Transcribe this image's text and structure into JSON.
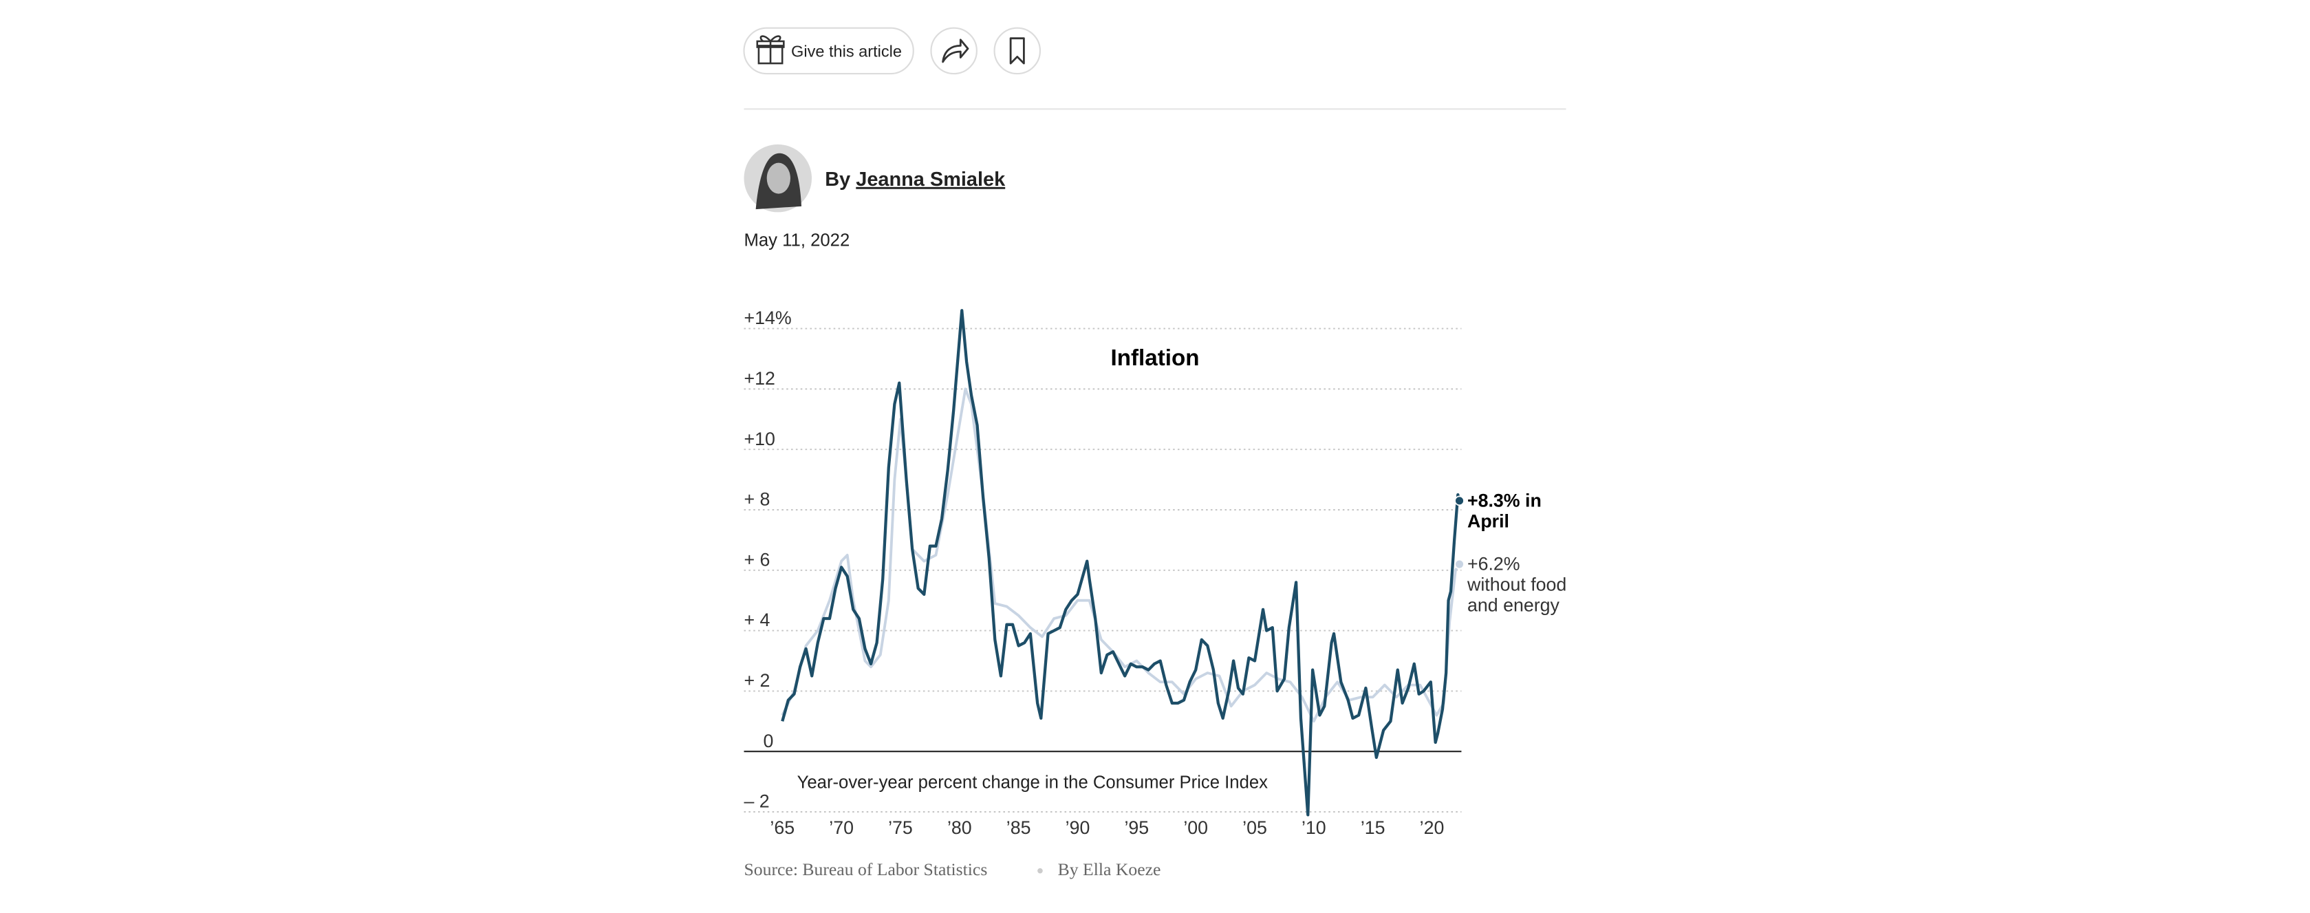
{
  "article": {
    "gift_button": "Give this article",
    "byline_prefix": "By",
    "author": "Jeanna Smialek",
    "date": "May 11, 2022"
  },
  "chart_data": {
    "type": "line",
    "title": "Inflation",
    "subtitle": "Year-over-year percent change in the Consumer Price Index",
    "source": "Source: Bureau of Labor Statistics",
    "credit": "By Ella Koeze",
    "xlim": [
      1962,
      2022.5
    ],
    "ylim": [
      -2,
      14
    ],
    "xticks": [
      {
        "value": 1965,
        "label": "’65"
      },
      {
        "value": 1970,
        "label": "’70"
      },
      {
        "value": 1975,
        "label": "’75"
      },
      {
        "value": 1980,
        "label": "’80"
      },
      {
        "value": 1985,
        "label": "’85"
      },
      {
        "value": 1990,
        "label": "’90"
      },
      {
        "value": 1995,
        "label": "’95"
      },
      {
        "value": 2000,
        "label": "’00"
      },
      {
        "value": 2005,
        "label": "’05"
      },
      {
        "value": 2010,
        "label": "’10"
      },
      {
        "value": 2015,
        "label": "’15"
      },
      {
        "value": 2020,
        "label": "’20"
      }
    ],
    "yticks": [
      {
        "value": 14,
        "label": "+14%"
      },
      {
        "value": 12,
        "label": "+12"
      },
      {
        "value": 10,
        "label": "+10"
      },
      {
        "value": 8,
        "label": "+ 8"
      },
      {
        "value": 6,
        "label": "+ 6"
      },
      {
        "value": 4,
        "label": "+ 4"
      },
      {
        "value": 2,
        "label": "+ 2"
      },
      0,
      {
        "value": -2,
        "label": "– 2"
      }
    ],
    "grid": true,
    "series": [
      {
        "name": "without food and energy",
        "color": "#c8d4e3",
        "label_lines": [
          "+6.2%",
          "without food",
          "and energy"
        ],
        "x": [
          1965,
          1966,
          1967,
          1968,
          1969,
          1970,
          1970.5,
          1971,
          1972,
          1972.5,
          1973.3,
          1974,
          1974.5,
          1975,
          1975.5,
          1976,
          1977,
          1978,
          1979,
          1980.5,
          1981,
          1982,
          1983,
          1984,
          1985,
          1986,
          1987,
          1988,
          1989,
          1990,
          1991,
          1992,
          1993,
          1994,
          1995,
          1996,
          1997,
          1998,
          1999,
          2000,
          2001,
          2002,
          2003,
          2004,
          2005,
          2006,
          2007,
          2008,
          2009,
          2010,
          2011,
          2012,
          2013,
          2014,
          2015,
          2016,
          2017,
          2018,
          2019,
          2020.4,
          2021,
          2021.5,
          2022,
          2022.33
        ],
        "values": [
          1.2,
          2.0,
          3.5,
          4.0,
          5.0,
          6.3,
          6.5,
          5.0,
          3.0,
          2.8,
          3.2,
          5.0,
          9.0,
          11.0,
          9.0,
          6.7,
          6.3,
          6.5,
          8.5,
          12.0,
          11.5,
          8.5,
          4.9,
          4.8,
          4.5,
          4.1,
          3.8,
          4.4,
          4.5,
          5.0,
          5.0,
          3.7,
          3.3,
          2.8,
          3.0,
          2.6,
          2.3,
          2.3,
          1.9,
          2.4,
          2.6,
          2.5,
          1.5,
          2.0,
          2.2,
          2.6,
          2.4,
          2.3,
          1.8,
          1.0,
          1.8,
          2.3,
          1.7,
          1.8,
          1.8,
          2.2,
          1.8,
          2.2,
          2.2,
          1.2,
          1.6,
          4.3,
          6.0,
          6.2
        ]
      },
      {
        "name": "+8.3% in April",
        "color": "#1d4e68",
        "label_lines": [
          "+8.3% in",
          "April"
        ],
        "x": [
          1965.0,
          1965.5,
          1966.0,
          1966.5,
          1967.0,
          1967.5,
          1968.0,
          1968.5,
          1969.0,
          1969.5,
          1970.0,
          1970.5,
          1971.0,
          1971.5,
          1972.0,
          1972.5,
          1973.0,
          1973.5,
          1974.0,
          1974.5,
          1974.9,
          1975.5,
          1976.0,
          1976.5,
          1977.0,
          1977.5,
          1978.0,
          1978.5,
          1979.0,
          1979.5,
          1980.2,
          1980.6,
          1981.0,
          1981.5,
          1982.0,
          1982.5,
          1983.0,
          1983.5,
          1984.0,
          1984.5,
          1985.0,
          1985.5,
          1986.0,
          1986.6,
          1986.9,
          1987.5,
          1988.0,
          1988.5,
          1989.0,
          1989.5,
          1990.0,
          1990.8,
          1991.0,
          1991.5,
          1992.0,
          1992.5,
          1993.0,
          1994.0,
          1994.5,
          1995.0,
          1995.5,
          1996.0,
          1996.5,
          1997.0,
          1997.5,
          1998.0,
          1998.5,
          1999.0,
          1999.5,
          2000.0,
          2000.5,
          2001.0,
          2001.5,
          2001.9,
          2002.3,
          2002.8,
          2003.2,
          2003.6,
          2004.0,
          2004.5,
          2005.0,
          2005.7,
          2006.0,
          2006.5,
          2006.9,
          2007.5,
          2007.9,
          2008.5,
          2008.9,
          2009.5,
          2009.9,
          2010.5,
          2010.9,
          2011.5,
          2011.7,
          2012.3,
          2012.9,
          2013.3,
          2013.8,
          2014.4,
          2014.9,
          2015.3,
          2015.9,
          2016.5,
          2017.1,
          2017.5,
          2018.0,
          2018.5,
          2018.9,
          2019.3,
          2019.9,
          2020.3,
          2020.5,
          2020.9,
          2021.2,
          2021.4,
          2021.6,
          2021.9,
          2022.2,
          2022.33
        ],
        "values": [
          1.0,
          1.7,
          1.9,
          2.8,
          3.4,
          2.5,
          3.6,
          4.4,
          4.4,
          5.4,
          6.1,
          5.8,
          4.7,
          4.4,
          3.4,
          2.9,
          3.6,
          5.7,
          9.4,
          11.5,
          12.2,
          9.0,
          6.7,
          5.4,
          5.2,
          6.8,
          6.8,
          7.7,
          9.3,
          11.3,
          14.6,
          12.9,
          11.8,
          10.8,
          8.4,
          6.4,
          3.7,
          2.5,
          4.2,
          4.2,
          3.5,
          3.6,
          3.9,
          1.6,
          1.1,
          3.9,
          4.0,
          4.1,
          4.7,
          5.0,
          5.2,
          6.3,
          5.7,
          4.4,
          2.6,
          3.2,
          3.3,
          2.5,
          2.9,
          2.8,
          2.8,
          2.7,
          2.9,
          3.0,
          2.2,
          1.6,
          1.6,
          1.7,
          2.3,
          2.7,
          3.7,
          3.5,
          2.7,
          1.6,
          1.1,
          2.0,
          3.0,
          2.1,
          1.9,
          3.1,
          3.0,
          4.7,
          4.0,
          4.1,
          2.0,
          2.4,
          4.1,
          5.6,
          1.1,
          -2.1,
          2.7,
          1.2,
          1.5,
          3.6,
          3.9,
          2.3,
          1.7,
          1.1,
          1.2,
          2.1,
          0.8,
          -0.2,
          0.7,
          1.0,
          2.7,
          1.6,
          2.1,
          2.9,
          1.9,
          2.0,
          2.3,
          0.3,
          0.6,
          1.4,
          2.6,
          5.0,
          5.3,
          7.0,
          8.5,
          8.3
        ]
      }
    ]
  }
}
